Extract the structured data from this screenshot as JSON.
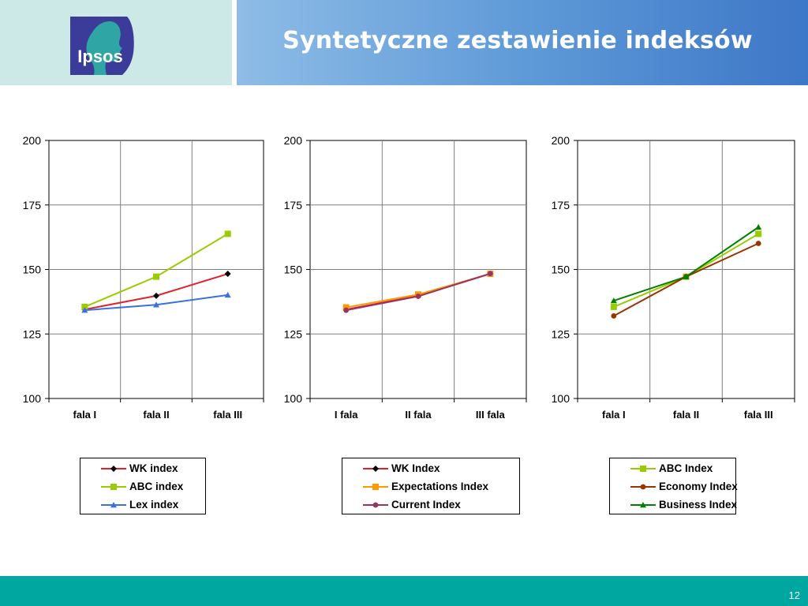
{
  "slide": {
    "title": "Syntetyczne zestawienie indeksów",
    "page_number": "12",
    "logo_text": "Ipsos",
    "colors": {
      "footer": "#00a6a0",
      "header_blue": "#5f9ad8",
      "header_mint": "#cde9e7",
      "logo": "#3b3b9a"
    }
  },
  "chart_data": [
    {
      "type": "line",
      "categories": [
        "fala I",
        "fala II",
        "fala III"
      ],
      "ylim": [
        100,
        200
      ],
      "yticks": [
        100,
        125,
        150,
        175,
        200
      ],
      "grid": true,
      "legend_position": "bottom",
      "series": [
        {
          "name": "WK index",
          "values": [
            134.5,
            139.8,
            148.3
          ],
          "color": "#e3202a",
          "marker": "diamond",
          "marker_color": "#000000"
        },
        {
          "name": "ABC index",
          "values": [
            135.5,
            147.2,
            163.8
          ],
          "color": "#99cc00",
          "marker": "square",
          "marker_color": "#99cc00"
        },
        {
          "name": "Lex index",
          "values": [
            134.2,
            136.3,
            140.1
          ],
          "color": "#3a70e0",
          "marker": "triangle",
          "marker_color": "#3a70e0"
        }
      ]
    },
    {
      "type": "line",
      "categories": [
        "I fala",
        "II fala",
        "III fala"
      ],
      "ylim": [
        100,
        200
      ],
      "yticks": [
        100,
        125,
        150,
        175,
        200
      ],
      "grid": true,
      "legend_position": "bottom",
      "series": [
        {
          "name": "WK Index",
          "values": [
            134.5,
            139.8,
            148.3
          ],
          "color": "#e3202a",
          "marker": "diamond",
          "marker_color": "#000000"
        },
        {
          "name": "Expectations Index",
          "values": [
            135.3,
            140.3,
            148.3
          ],
          "color": "#ff9900",
          "marker": "square",
          "marker_color": "#ff9900"
        },
        {
          "name": "Current Index",
          "values": [
            134.2,
            139.6,
            148.4
          ],
          "color": "#993366",
          "marker": "circle",
          "marker_color": "#993366"
        }
      ]
    },
    {
      "type": "line",
      "categories": [
        "fala I",
        "fala II",
        "fala III"
      ],
      "ylim": [
        100,
        200
      ],
      "yticks": [
        100,
        125,
        150,
        175,
        200
      ],
      "grid": true,
      "legend_position": "bottom",
      "series": [
        {
          "name": "ABC Index",
          "values": [
            135.5,
            147.2,
            163.8
          ],
          "color": "#99cc00",
          "marker": "square",
          "marker_color": "#99cc00"
        },
        {
          "name": "Economy Index",
          "values": [
            132.0,
            147.2,
            160.1
          ],
          "color": "#993300",
          "marker": "circle",
          "marker_color": "#993300"
        },
        {
          "name": "Business Index",
          "values": [
            137.9,
            147.2,
            166.4
          ],
          "color": "#008000",
          "marker": "triangle",
          "marker_color": "#008000"
        }
      ]
    }
  ]
}
